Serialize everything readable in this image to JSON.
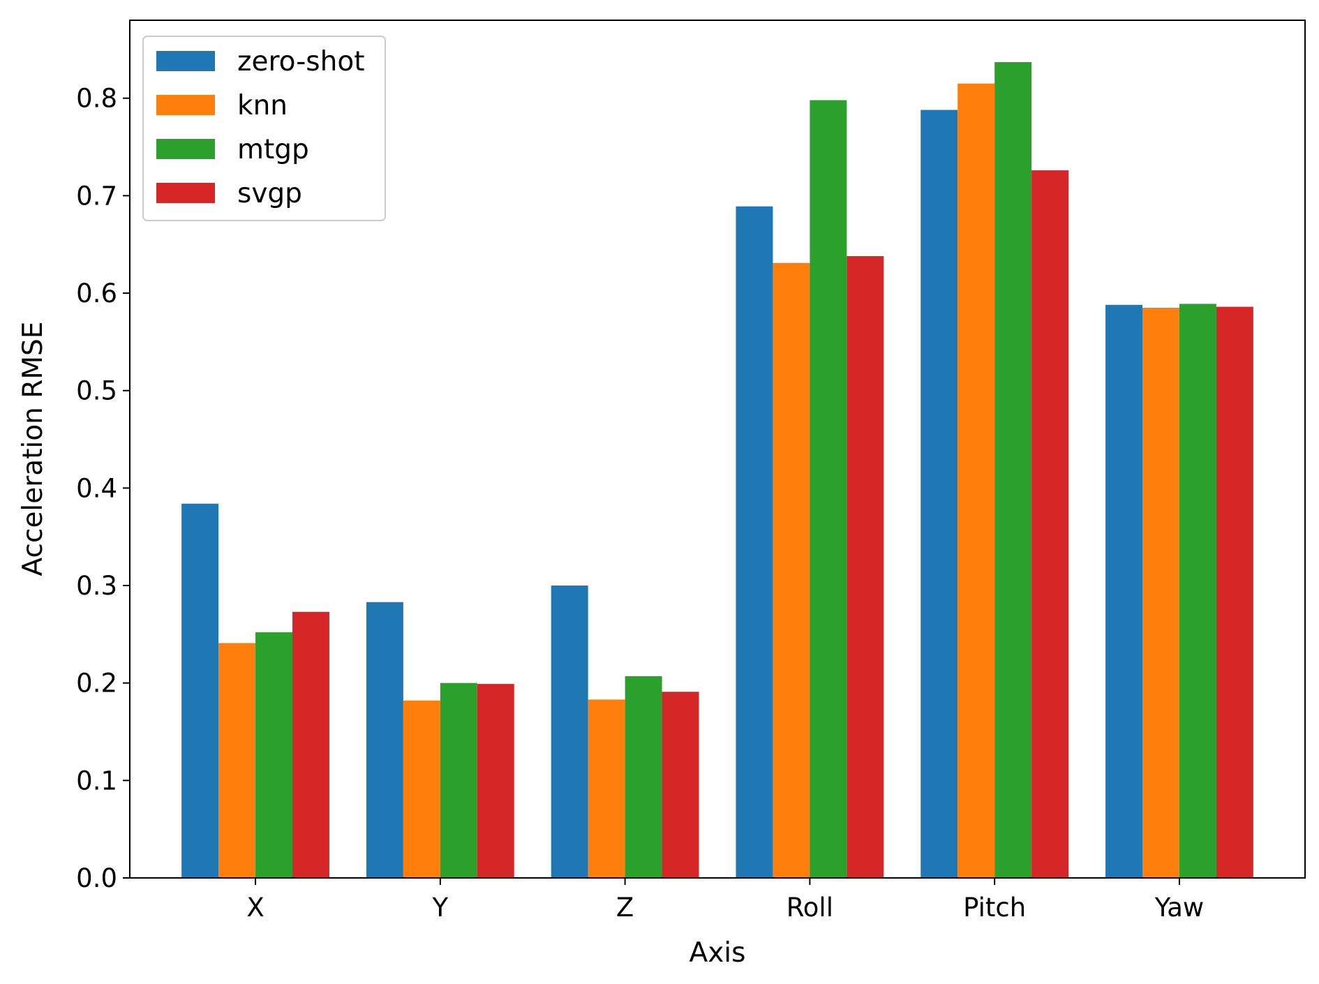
{
  "chart_data": {
    "type": "bar",
    "title": "",
    "xlabel": "Axis",
    "ylabel": "Acceleration RMSE",
    "categories": [
      "X",
      "Y",
      "Z",
      "Roll",
      "Pitch",
      "Yaw"
    ],
    "series": [
      {
        "name": "zero-shot",
        "color": "#1f77b4",
        "values": [
          0.384,
          0.283,
          0.3,
          0.689,
          0.788,
          0.588
        ]
      },
      {
        "name": "knn",
        "color": "#ff7f0e",
        "values": [
          0.241,
          0.182,
          0.183,
          0.631,
          0.815,
          0.585
        ]
      },
      {
        "name": "mtgp",
        "color": "#2ca02c",
        "values": [
          0.252,
          0.2,
          0.207,
          0.798,
          0.837,
          0.589
        ]
      },
      {
        "name": "svgp",
        "color": "#d62728",
        "values": [
          0.273,
          0.199,
          0.191,
          0.638,
          0.726,
          0.586
        ]
      }
    ],
    "ylim": [
      0,
      0.88
    ],
    "yticks": [
      "0.0",
      "0.1",
      "0.2",
      "0.3",
      "0.4",
      "0.5",
      "0.6",
      "0.7",
      "0.8"
    ],
    "grid": false,
    "legend_position": "top-left"
  }
}
